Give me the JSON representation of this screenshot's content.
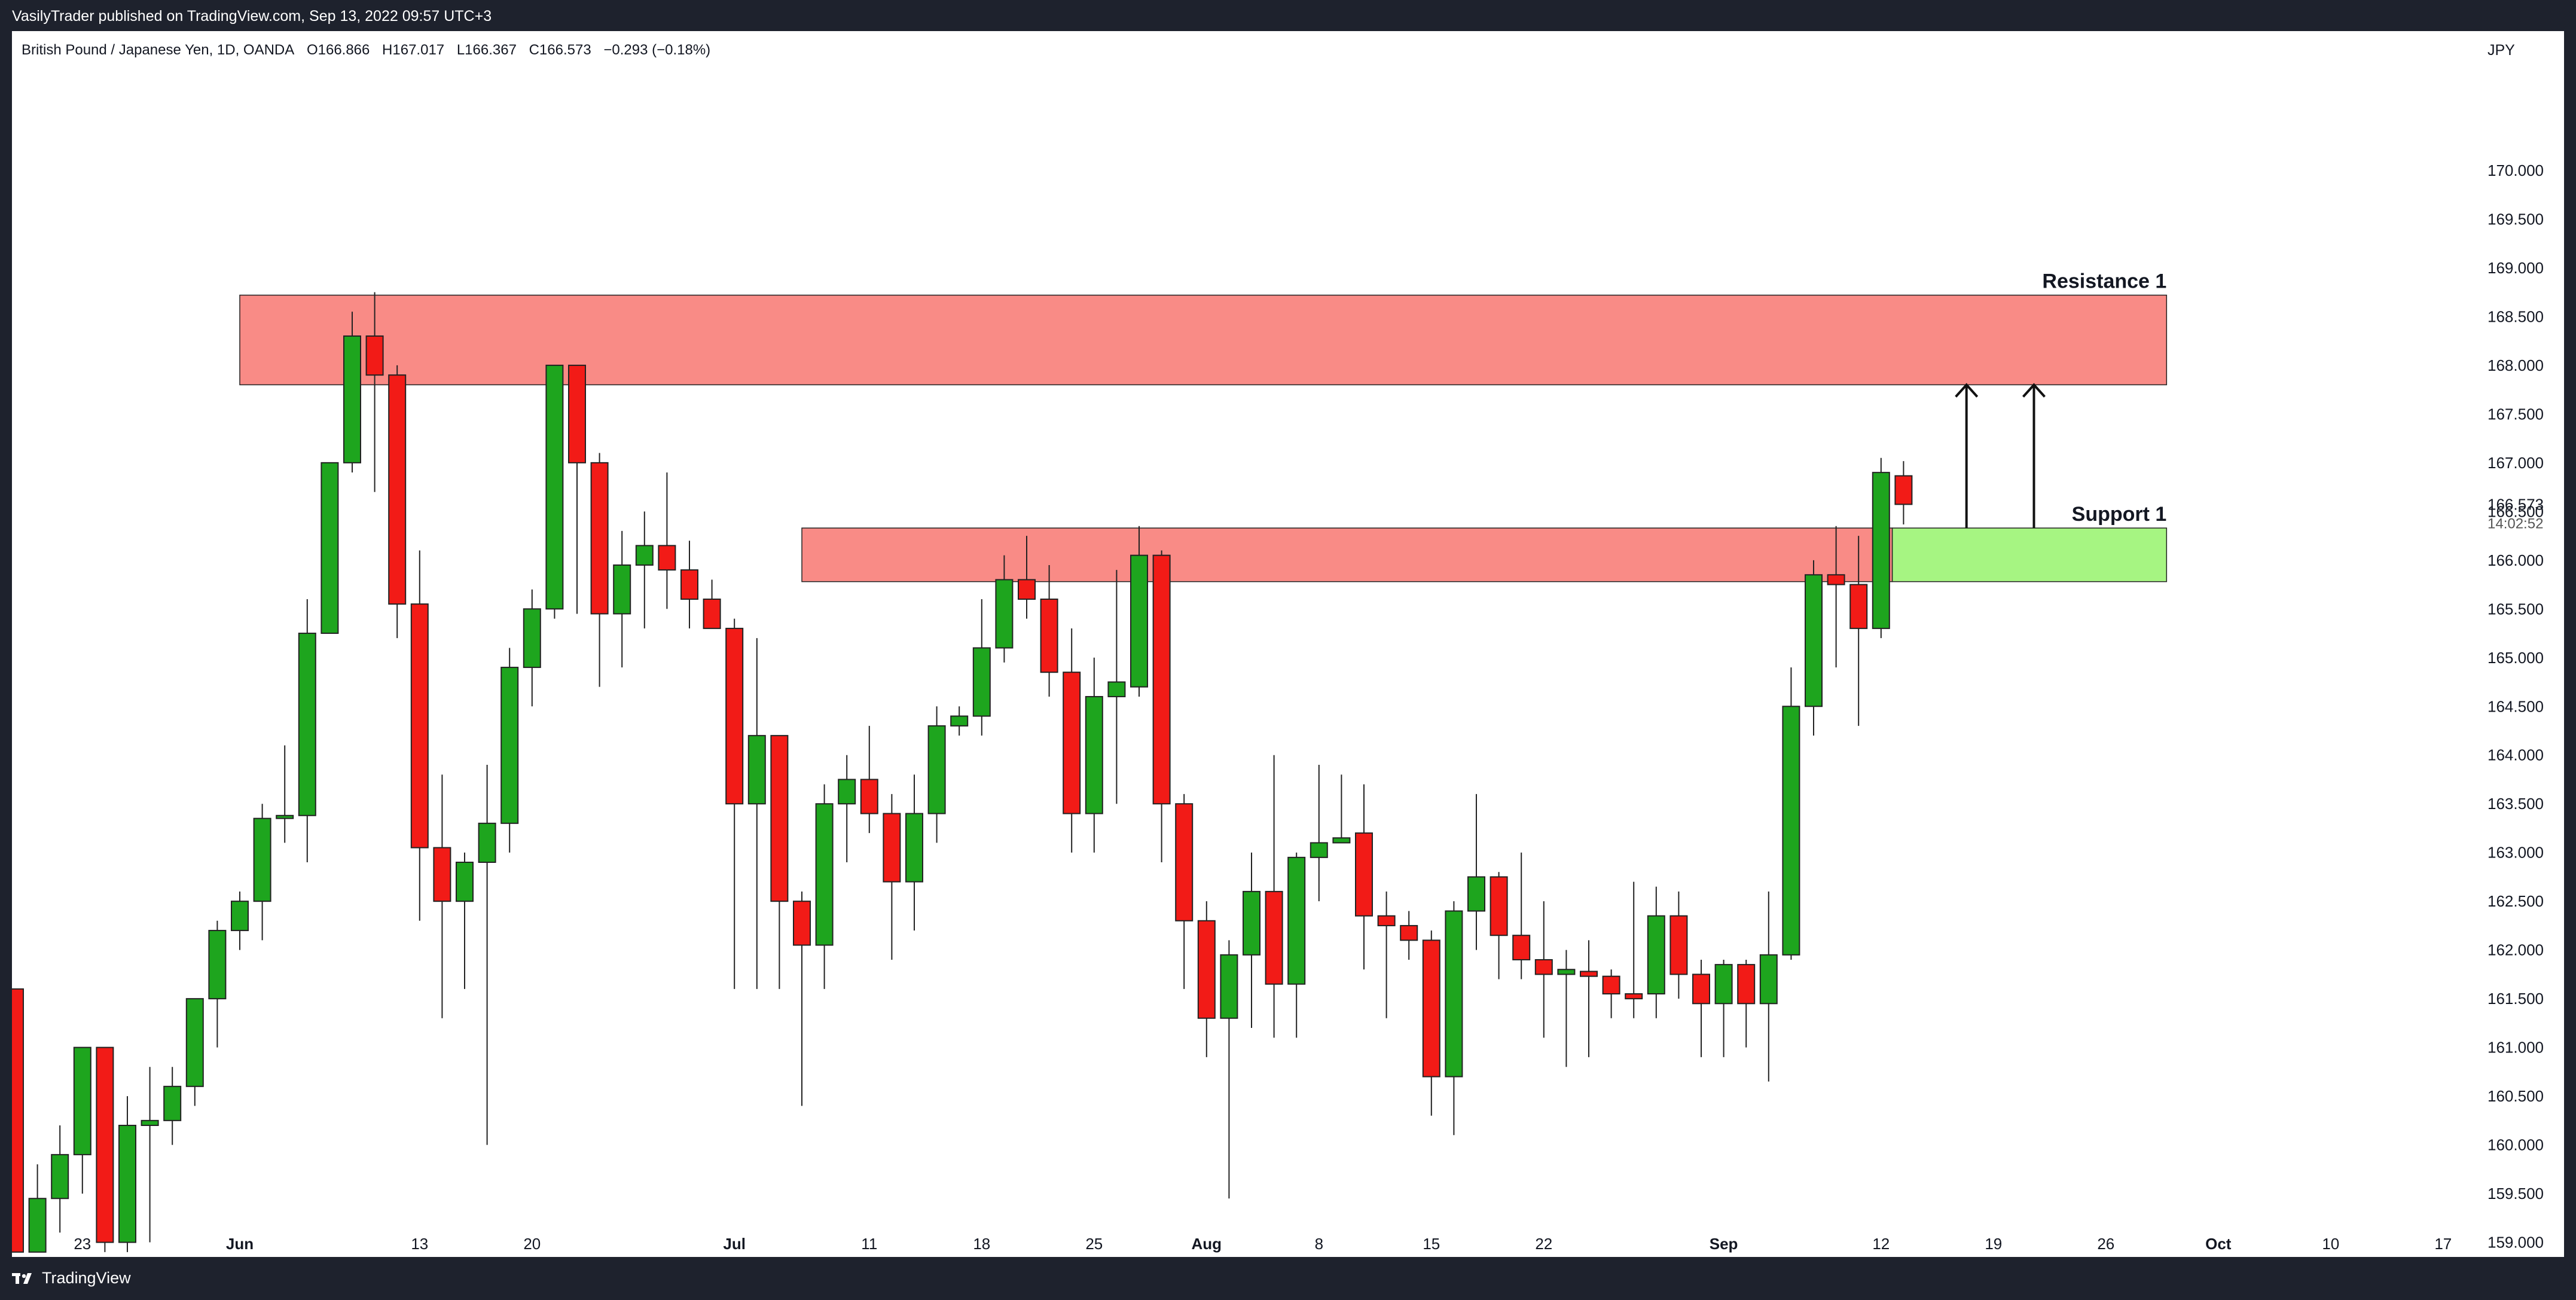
{
  "header": {
    "published_text": "VasilyTrader published on TradingView.com, Sep 13, 2022 09:57 UTC+3"
  },
  "legend": {
    "title": "British Pound / Japanese Yen, 1D, OANDA",
    "open": "O166.866",
    "high": "H167.017",
    "low": "L166.367",
    "close": "C166.573",
    "change": "−0.293 (−0.18%)"
  },
  "footer": {
    "brand": "TradingView"
  },
  "chart_data": {
    "type": "candlestick",
    "currency": "JPY",
    "ylim": [
      158.85,
      171.0
    ],
    "y_ticks": [
      "159.000",
      "159.500",
      "160.000",
      "160.500",
      "161.000",
      "161.500",
      "162.000",
      "162.500",
      "163.000",
      "163.500",
      "164.000",
      "164.500",
      "165.000",
      "165.500",
      "166.000",
      "166.500",
      "167.000",
      "167.500",
      "168.000",
      "168.500",
      "169.000",
      "169.500",
      "170.000"
    ],
    "last_price": "166.573",
    "countdown": "14:02:52",
    "x_ticks": [
      {
        "label": "23",
        "index": 3
      },
      {
        "label": "Jun",
        "index": 10
      },
      {
        "label": "13",
        "index": 18
      },
      {
        "label": "20",
        "index": 23
      },
      {
        "label": "Jul",
        "index": 32
      },
      {
        "label": "11",
        "index": 38
      },
      {
        "label": "18",
        "index": 43
      },
      {
        "label": "25",
        "index": 48
      },
      {
        "label": "Aug",
        "index": 53
      },
      {
        "label": "8",
        "index": 58
      },
      {
        "label": "15",
        "index": 63
      },
      {
        "label": "22",
        "index": 68
      },
      {
        "label": "Sep",
        "index": 76
      },
      {
        "label": "12",
        "index": 83
      },
      {
        "label": "19",
        "index": 88
      },
      {
        "label": "26",
        "index": 93
      },
      {
        "label": "Oct",
        "index": 98
      },
      {
        "label": "10",
        "index": 103
      },
      {
        "label": "17",
        "index": 108
      }
    ],
    "candles": [
      {
        "o": 161.6,
        "h": 161.6,
        "l": 158.9,
        "c": 158.9
      },
      {
        "o": 158.9,
        "h": 159.8,
        "l": 158.9,
        "c": 159.45
      },
      {
        "o": 159.45,
        "h": 160.2,
        "l": 159.1,
        "c": 159.9
      },
      {
        "o": 159.9,
        "h": 161.0,
        "l": 159.5,
        "c": 161.0
      },
      {
        "o": 161.0,
        "h": 161.0,
        "l": 158.9,
        "c": 159.0
      },
      {
        "o": 159.0,
        "h": 160.5,
        "l": 158.9,
        "c": 160.2
      },
      {
        "o": 160.2,
        "h": 160.8,
        "l": 159.0,
        "c": 160.25
      },
      {
        "o": 160.25,
        "h": 160.8,
        "l": 160.0,
        "c": 160.6
      },
      {
        "o": 160.6,
        "h": 161.5,
        "l": 160.4,
        "c": 161.5
      },
      {
        "o": 161.5,
        "h": 162.3,
        "l": 161.0,
        "c": 162.2
      },
      {
        "o": 162.2,
        "h": 162.6,
        "l": 162.0,
        "c": 162.5
      },
      {
        "o": 162.5,
        "h": 163.5,
        "l": 162.1,
        "c": 163.35
      },
      {
        "o": 163.35,
        "h": 164.1,
        "l": 163.1,
        "c": 163.38
      },
      {
        "o": 163.38,
        "h": 165.6,
        "l": 162.9,
        "c": 165.25
      },
      {
        "o": 165.25,
        "h": 167.0,
        "l": 165.25,
        "c": 167.0
      },
      {
        "o": 167.0,
        "h": 168.55,
        "l": 166.9,
        "c": 168.3
      },
      {
        "o": 168.3,
        "h": 168.75,
        "l": 166.7,
        "c": 167.9
      },
      {
        "o": 167.9,
        "h": 168.0,
        "l": 165.2,
        "c": 165.55
      },
      {
        "o": 165.55,
        "h": 166.1,
        "l": 162.3,
        "c": 163.05
      },
      {
        "o": 163.05,
        "h": 163.8,
        "l": 161.3,
        "c": 162.5
      },
      {
        "o": 162.5,
        "h": 163.0,
        "l": 161.6,
        "c": 162.9
      },
      {
        "o": 162.9,
        "h": 163.9,
        "l": 160.0,
        "c": 163.3
      },
      {
        "o": 163.3,
        "h": 165.1,
        "l": 163.0,
        "c": 164.9
      },
      {
        "o": 164.9,
        "h": 165.7,
        "l": 164.5,
        "c": 165.5
      },
      {
        "o": 165.5,
        "h": 168.0,
        "l": 165.4,
        "c": 168.0
      },
      {
        "o": 168.0,
        "h": 168.0,
        "l": 165.45,
        "c": 167.0
      },
      {
        "o": 167.0,
        "h": 167.1,
        "l": 164.7,
        "c": 165.45
      },
      {
        "o": 165.45,
        "h": 166.3,
        "l": 164.9,
        "c": 165.95
      },
      {
        "o": 165.95,
        "h": 166.5,
        "l": 165.3,
        "c": 166.15
      },
      {
        "o": 166.15,
        "h": 166.9,
        "l": 165.5,
        "c": 165.9
      },
      {
        "o": 165.9,
        "h": 166.2,
        "l": 165.3,
        "c": 165.6
      },
      {
        "o": 165.6,
        "h": 165.8,
        "l": 165.4,
        "c": 165.3
      },
      {
        "o": 165.3,
        "h": 165.4,
        "l": 161.6,
        "c": 163.5
      },
      {
        "o": 163.5,
        "h": 165.2,
        "l": 161.6,
        "c": 164.2
      },
      {
        "o": 164.2,
        "h": 164.2,
        "l": 161.6,
        "c": 162.5
      },
      {
        "o": 162.5,
        "h": 162.6,
        "l": 160.4,
        "c": 162.05
      },
      {
        "o": 162.05,
        "h": 163.7,
        "l": 161.6,
        "c": 163.5
      },
      {
        "o": 163.5,
        "h": 164.0,
        "l": 162.9,
        "c": 163.75
      },
      {
        "o": 163.75,
        "h": 164.3,
        "l": 163.2,
        "c": 163.4
      },
      {
        "o": 163.4,
        "h": 163.6,
        "l": 161.9,
        "c": 162.7
      },
      {
        "o": 162.7,
        "h": 163.8,
        "l": 162.2,
        "c": 163.4
      },
      {
        "o": 163.4,
        "h": 164.5,
        "l": 163.1,
        "c": 164.3
      },
      {
        "o": 164.3,
        "h": 164.5,
        "l": 164.2,
        "c": 164.4
      },
      {
        "o": 164.4,
        "h": 165.6,
        "l": 164.2,
        "c": 165.1
      },
      {
        "o": 165.1,
        "h": 166.05,
        "l": 164.95,
        "c": 165.8
      },
      {
        "o": 165.8,
        "h": 166.25,
        "l": 165.4,
        "c": 165.6
      },
      {
        "o": 165.6,
        "h": 165.95,
        "l": 164.6,
        "c": 164.85
      },
      {
        "o": 164.85,
        "h": 165.3,
        "l": 163.0,
        "c": 163.4
      },
      {
        "o": 163.4,
        "h": 165.0,
        "l": 163.0,
        "c": 164.6
      },
      {
        "o": 164.6,
        "h": 165.9,
        "l": 163.5,
        "c": 164.75
      },
      {
        "o": 164.7,
        "h": 166.35,
        "l": 164.6,
        "c": 166.05
      },
      {
        "o": 166.05,
        "h": 166.1,
        "l": 162.9,
        "c": 163.5
      },
      {
        "o": 163.5,
        "h": 163.6,
        "l": 161.6,
        "c": 162.3
      },
      {
        "o": 162.3,
        "h": 162.5,
        "l": 160.9,
        "c": 161.3
      },
      {
        "o": 161.3,
        "h": 162.1,
        "l": 159.45,
        "c": 161.95
      },
      {
        "o": 161.95,
        "h": 163.0,
        "l": 161.2,
        "c": 162.6
      },
      {
        "o": 162.6,
        "h": 164.0,
        "l": 161.1,
        "c": 161.65
      },
      {
        "o": 161.65,
        "h": 163.0,
        "l": 161.1,
        "c": 162.95
      },
      {
        "o": 162.95,
        "h": 163.9,
        "l": 162.5,
        "c": 163.1
      },
      {
        "o": 163.1,
        "h": 163.8,
        "l": 163.1,
        "c": 163.15
      },
      {
        "o": 163.2,
        "h": 163.7,
        "l": 161.8,
        "c": 162.35
      },
      {
        "o": 162.35,
        "h": 162.6,
        "l": 161.3,
        "c": 162.25
      },
      {
        "o": 162.25,
        "h": 162.4,
        "l": 161.9,
        "c": 162.1
      },
      {
        "o": 162.1,
        "h": 162.2,
        "l": 160.3,
        "c": 160.7
      },
      {
        "o": 160.7,
        "h": 162.5,
        "l": 160.1,
        "c": 162.4
      },
      {
        "o": 162.4,
        "h": 163.6,
        "l": 162.0,
        "c": 162.75
      },
      {
        "o": 162.75,
        "h": 162.8,
        "l": 161.7,
        "c": 162.15
      },
      {
        "o": 162.15,
        "h": 163.0,
        "l": 161.7,
        "c": 161.9
      },
      {
        "o": 161.9,
        "h": 162.5,
        "l": 161.1,
        "c": 161.75
      },
      {
        "o": 161.75,
        "h": 162.0,
        "l": 160.8,
        "c": 161.8
      },
      {
        "o": 161.78,
        "h": 162.1,
        "l": 160.9,
        "c": 161.73
      },
      {
        "o": 161.73,
        "h": 161.8,
        "l": 161.3,
        "c": 161.55
      },
      {
        "o": 161.55,
        "h": 162.7,
        "l": 161.3,
        "c": 161.5
      },
      {
        "o": 161.55,
        "h": 162.65,
        "l": 161.3,
        "c": 162.35
      },
      {
        "o": 162.35,
        "h": 162.6,
        "l": 161.5,
        "c": 161.75
      },
      {
        "o": 161.75,
        "h": 161.9,
        "l": 160.9,
        "c": 161.45
      },
      {
        "o": 161.45,
        "h": 161.9,
        "l": 160.9,
        "c": 161.85
      },
      {
        "o": 161.85,
        "h": 161.9,
        "l": 161.0,
        "c": 161.45
      },
      {
        "o": 161.45,
        "h": 162.6,
        "l": 160.65,
        "c": 161.95
      },
      {
        "o": 161.95,
        "h": 164.9,
        "l": 161.9,
        "c": 164.5
      },
      {
        "o": 164.5,
        "h": 166.0,
        "l": 164.2,
        "c": 165.85
      },
      {
        "o": 165.85,
        "h": 166.35,
        "l": 164.9,
        "c": 165.75
      },
      {
        "o": 165.75,
        "h": 166.25,
        "l": 164.3,
        "c": 165.3
      },
      {
        "o": 165.3,
        "h": 167.05,
        "l": 165.2,
        "c": 166.9
      },
      {
        "o": 166.866,
        "h": 167.017,
        "l": 166.367,
        "c": 166.573
      }
    ],
    "zones": [
      {
        "label": "Resistance 1",
        "from": 167.8,
        "to": 168.72,
        "start": 10,
        "end": 95.7,
        "color": "#f98b86"
      },
      {
        "label": "",
        "from": 165.78,
        "to": 166.33,
        "start": 35,
        "end": 83.5,
        "color": "#f98b86"
      },
      {
        "label": "Support 1",
        "from": 165.78,
        "to": 166.33,
        "start": 83.5,
        "end": 95.7,
        "color": "#a6f582"
      }
    ],
    "arrows": [
      {
        "at": 86.8,
        "from": 166.33,
        "to": 167.8
      },
      {
        "at": 89.8,
        "from": 166.33,
        "to": 167.8
      }
    ],
    "colors": {
      "up": "#1ea51e",
      "down": "#f21b17",
      "zone_resistance": "#f98b86",
      "zone_support": "#a6f582"
    }
  }
}
